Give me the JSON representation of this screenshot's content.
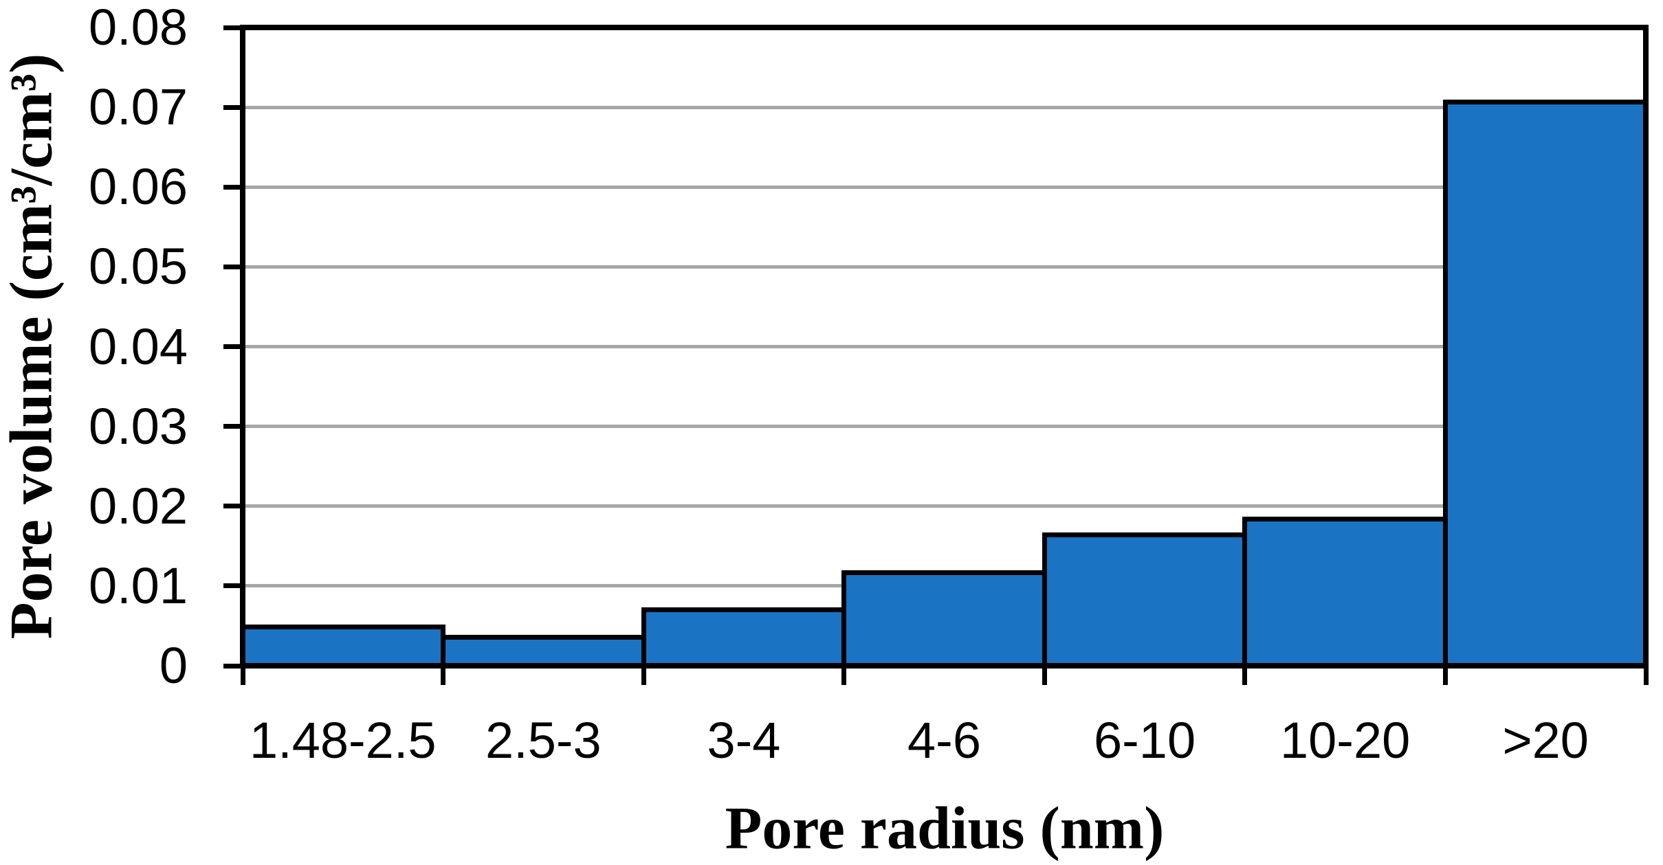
{
  "figure": {
    "background": "#FFFFFF"
  },
  "chart_data": {
    "type": "bar",
    "style": "histogram (zero gap, touching bars)",
    "title": "",
    "categories": [
      "1.48-2.5",
      "2.5-3",
      "3-4",
      "4-6",
      "6-10",
      "10-20",
      ">20"
    ],
    "values": [
      0.0052,
      0.0039,
      0.0073,
      0.012,
      0.0167,
      0.0187,
      0.071
    ],
    "xlabel": "Pore radius (nm)",
    "ylabel": "Pore volume (cm³/cm³)",
    "ylim": [
      0,
      0.08
    ],
    "ytick_interval": 0.01,
    "yticks": [
      "0.08",
      "0.07",
      "0.06",
      "0.05",
      "0.04",
      "0.03",
      "0.02",
      "0.01",
      "0"
    ],
    "grid": "horizontal gridlines at each 0.01, drawn behind bars",
    "legend": "none",
    "colors": {
      "bar_fill": "#1B73C4",
      "bar_border": "#000000",
      "axis": "#000000",
      "gridline": "#A6A6A6",
      "text": "#000000",
      "background": "#FFFFFF"
    }
  }
}
